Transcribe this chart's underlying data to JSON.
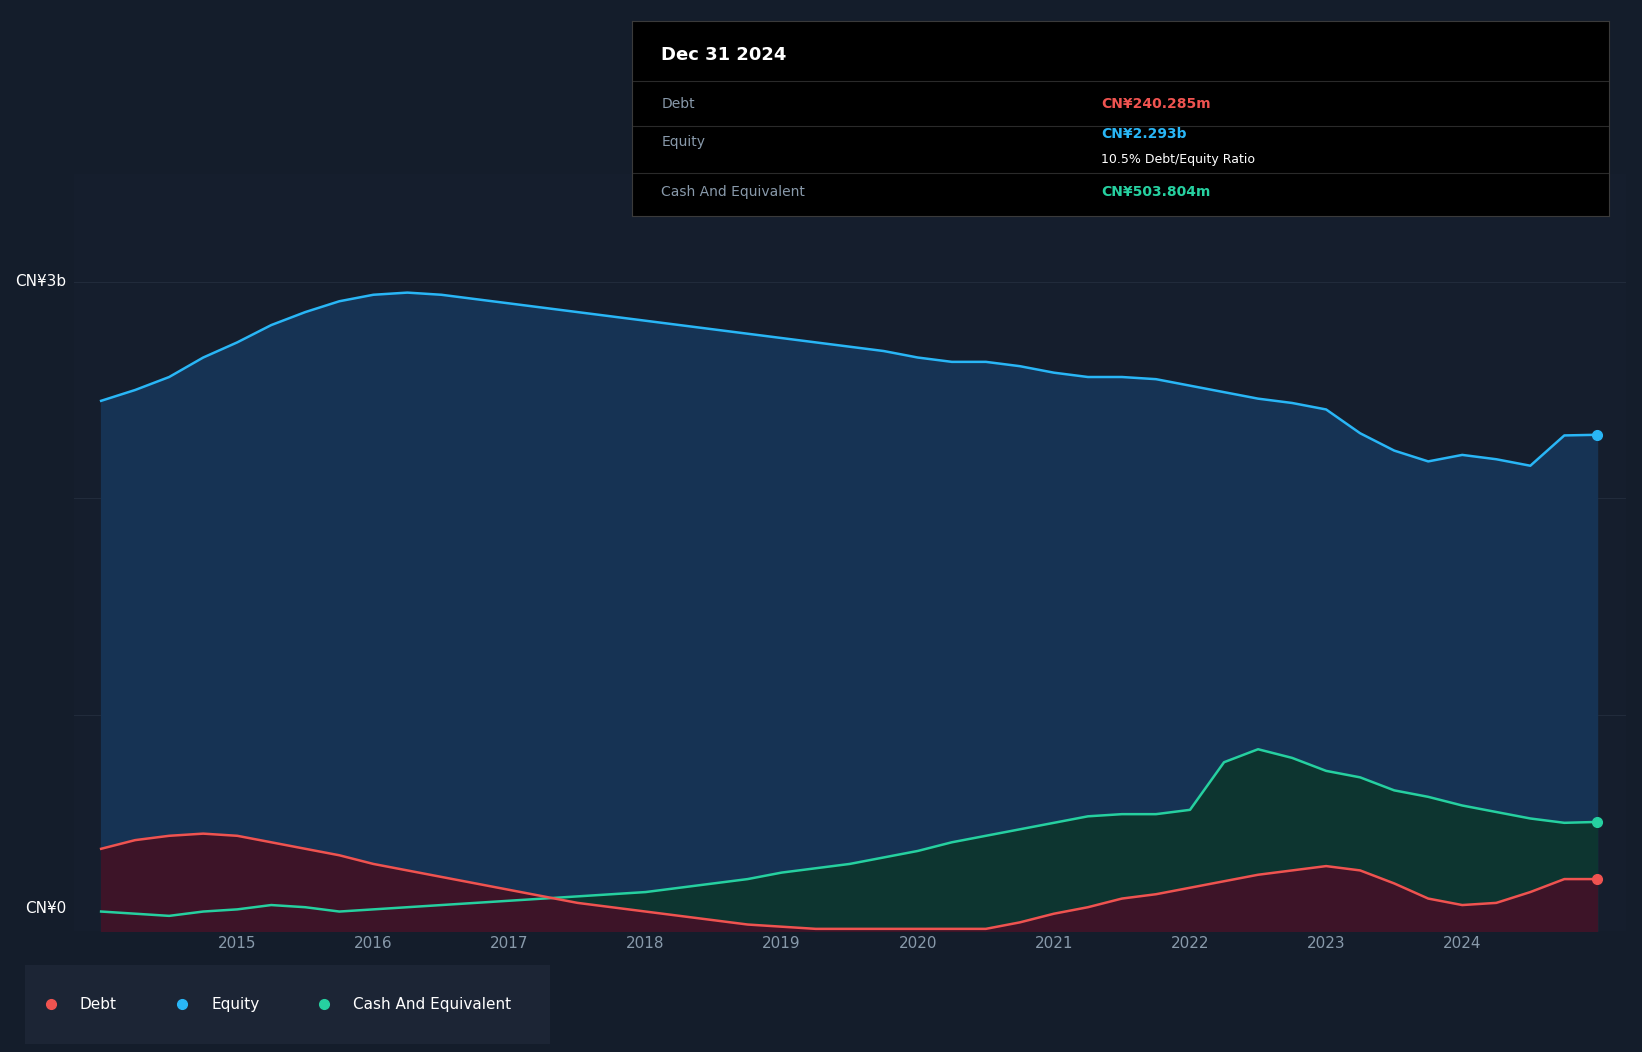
{
  "background_color": "#141d2b",
  "plot_bg_color": "#151e2d",
  "equity_color": "#29b6f6",
  "debt_color": "#ef5350",
  "cash_color": "#26d0a0",
  "equity_fill": "#163354",
  "debt_fill": "#3d1428",
  "cash_fill": "#0d3530",
  "grid_color": "#253040",
  "text_color": "#ffffff",
  "label_color": "#8899aa",
  "tooltip_bg": "#000000",
  "years": [
    2014.0,
    2014.25,
    2014.5,
    2014.75,
    2015.0,
    2015.25,
    2015.5,
    2015.75,
    2016.0,
    2016.25,
    2016.5,
    2016.75,
    2017.0,
    2017.25,
    2017.5,
    2017.75,
    2018.0,
    2018.25,
    2018.5,
    2018.75,
    2019.0,
    2019.25,
    2019.5,
    2019.75,
    2020.0,
    2020.25,
    2020.5,
    2020.75,
    2021.0,
    2021.25,
    2021.5,
    2021.75,
    2022.0,
    2022.25,
    2022.5,
    2022.75,
    2023.0,
    2023.25,
    2023.5,
    2023.75,
    2024.0,
    2024.25,
    2024.5,
    2024.75,
    2024.99
  ],
  "equity": [
    2.45,
    2.5,
    2.56,
    2.65,
    2.72,
    2.8,
    2.86,
    2.91,
    2.94,
    2.95,
    2.94,
    2.92,
    2.9,
    2.88,
    2.86,
    2.84,
    2.82,
    2.8,
    2.78,
    2.76,
    2.74,
    2.72,
    2.7,
    2.68,
    2.65,
    2.63,
    2.63,
    2.61,
    2.58,
    2.56,
    2.56,
    2.55,
    2.52,
    2.49,
    2.46,
    2.44,
    2.41,
    2.3,
    2.22,
    2.17,
    2.2,
    2.18,
    2.15,
    2.29,
    2.293
  ],
  "debt": [
    0.38,
    0.42,
    0.44,
    0.45,
    0.44,
    0.41,
    0.38,
    0.35,
    0.31,
    0.28,
    0.25,
    0.22,
    0.19,
    0.16,
    0.13,
    0.11,
    0.09,
    0.07,
    0.05,
    0.03,
    0.02,
    0.01,
    0.01,
    0.01,
    0.01,
    0.01,
    0.01,
    0.04,
    0.08,
    0.11,
    0.15,
    0.17,
    0.2,
    0.23,
    0.26,
    0.28,
    0.3,
    0.28,
    0.22,
    0.15,
    0.12,
    0.13,
    0.18,
    0.24,
    0.24
  ],
  "cash": [
    0.09,
    0.08,
    0.07,
    0.09,
    0.1,
    0.12,
    0.11,
    0.09,
    0.1,
    0.11,
    0.12,
    0.13,
    0.14,
    0.15,
    0.16,
    0.17,
    0.18,
    0.2,
    0.22,
    0.24,
    0.27,
    0.29,
    0.31,
    0.34,
    0.37,
    0.41,
    0.44,
    0.47,
    0.5,
    0.53,
    0.54,
    0.54,
    0.56,
    0.78,
    0.84,
    0.8,
    0.74,
    0.71,
    0.65,
    0.62,
    0.58,
    0.55,
    0.52,
    0.5,
    0.504
  ],
  "xlim": [
    2013.8,
    2025.2
  ],
  "ylim": [
    0.0,
    3.5
  ],
  "xticks": [
    2015,
    2016,
    2017,
    2018,
    2019,
    2020,
    2021,
    2022,
    2023,
    2024
  ],
  "xtick_labels": [
    "2015",
    "2016",
    "2017",
    "2018",
    "2019",
    "2020",
    "2021",
    "2022",
    "2023",
    "2024"
  ]
}
